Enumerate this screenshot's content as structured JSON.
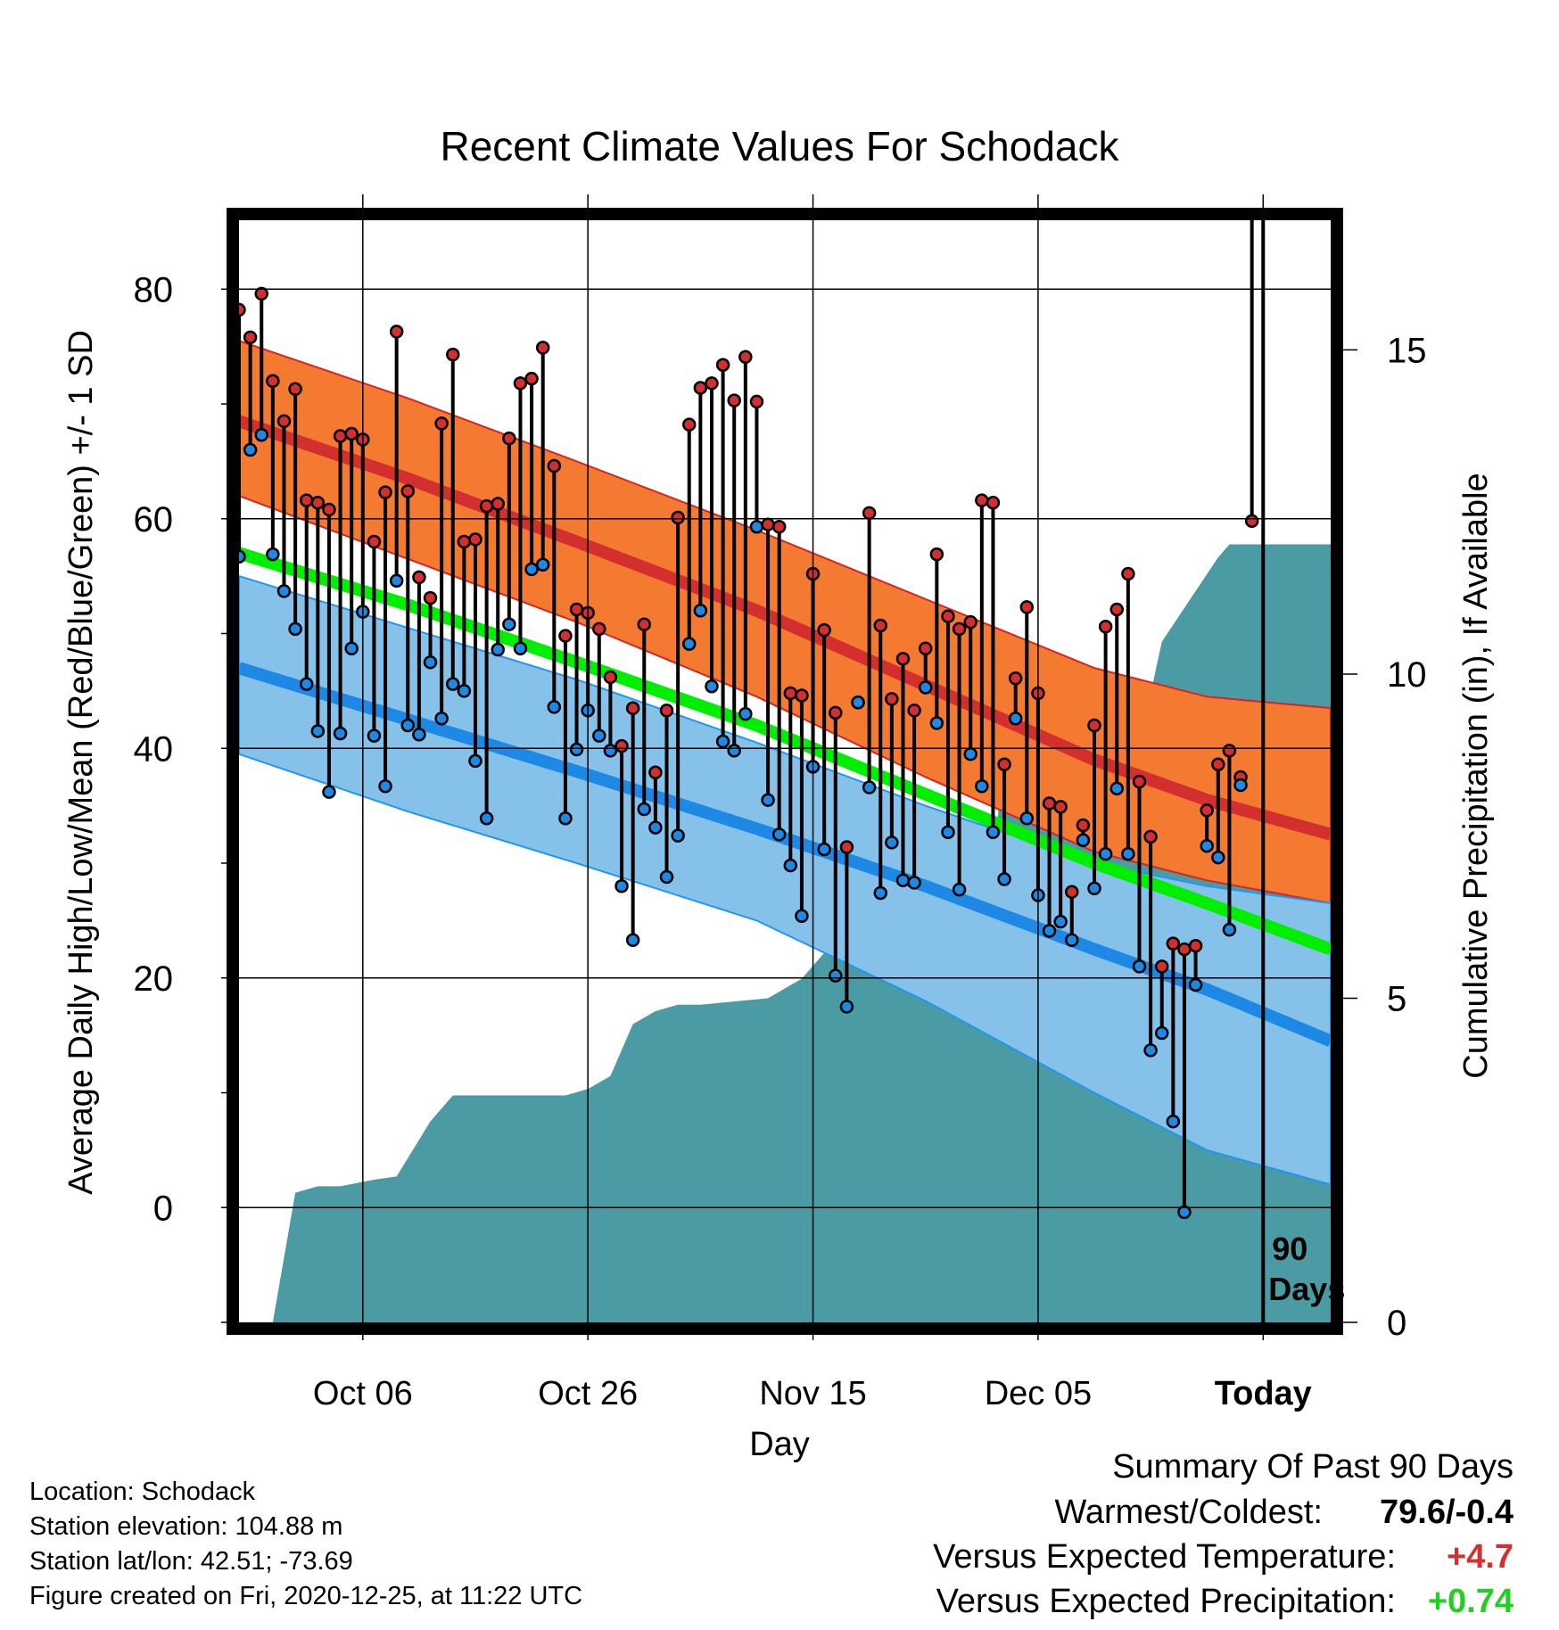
{
  "chart_data": {
    "type": "line",
    "title": "Recent Climate Values For Schodack",
    "xlabel": "Day",
    "ylabel_left": "Average Daily High/Low/Mean (Red/Blue/Green) +/- 1 SD",
    "ylabel_right": "Cumulative Precipitation (in), If Available",
    "xlim": [
      "2020-09-25",
      "2020-12-31"
    ],
    "ylim_left": [
      -10,
      86
    ],
    "ylim_right": [
      0,
      17
    ],
    "x_ticks": [
      {
        "date": "2020-10-06",
        "label": "Oct 06"
      },
      {
        "date": "2020-10-26",
        "label": "Oct 26"
      },
      {
        "date": "2020-11-15",
        "label": "Nov 15"
      },
      {
        "date": "2020-12-05",
        "label": "Dec 05"
      },
      {
        "date": "2020-12-25",
        "label": "Today"
      }
    ],
    "y_ticks_left": [
      0,
      20,
      40,
      60,
      80
    ],
    "y_ticks_right": [
      0,
      5,
      10,
      15
    ],
    "grid": true,
    "today_marker": {
      "date": "2020-12-25",
      "label_line1": "90",
      "label_line2": "Days"
    },
    "normals": {
      "dates": [
        "2020-09-25",
        "2020-10-10",
        "2020-10-25",
        "2020-11-10",
        "2020-11-25",
        "2020-12-10",
        "2020-12-20",
        "2020-12-31"
      ],
      "high_mean": [
        68.5,
        63.5,
        58.0,
        52.0,
        45.5,
        39.0,
        35.5,
        32.5
      ],
      "high_upper": [
        75.5,
        70.5,
        65.0,
        59.0,
        53.0,
        47.0,
        44.5,
        43.5
      ],
      "high_lower": [
        62.0,
        56.5,
        51.0,
        44.5,
        37.5,
        31.0,
        28.5,
        26.5
      ],
      "low_mean": [
        47.0,
        42.5,
        38.0,
        33.0,
        28.0,
        22.5,
        19.0,
        14.5
      ],
      "low_upper": [
        55.0,
        50.5,
        46.0,
        40.5,
        35.0,
        30.0,
        28.0,
        26.5
      ],
      "low_lower": [
        39.5,
        34.5,
        30.0,
        25.0,
        18.0,
        10.0,
        5.0,
        2.0
      ],
      "avg_mean": [
        57.0,
        52.5,
        47.5,
        42.0,
        36.0,
        30.0,
        26.5,
        22.5
      ]
    },
    "series": [
      {
        "name": "High",
        "color": "#d32f2f",
        "start_date": "2020-09-25",
        "values": [
          78.2,
          75.8,
          79.6,
          72.0,
          68.5,
          71.3,
          61.6,
          61.4,
          60.8,
          67.2,
          67.4,
          66.9,
          58.0,
          62.3,
          76.3,
          62.4,
          54.9,
          53.1,
          68.3,
          74.3,
          58.0,
          58.2,
          61.1,
          61.3,
          67.0,
          71.8,
          72.2,
          74.9,
          64.6,
          49.8,
          52.1,
          51.8,
          50.4,
          46.2,
          40.2,
          43.5,
          50.8,
          37.9,
          43.3,
          60.1,
          68.2,
          71.4,
          71.8,
          73.4,
          70.3,
          74.1,
          70.2,
          59.5,
          59.3,
          44.8,
          44.6,
          55.2,
          50.3,
          43.1,
          31.4,
          44.0,
          60.5,
          50.7,
          44.3,
          47.8,
          43.3,
          48.7,
          56.9,
          51.5,
          50.4,
          51.0,
          61.6,
          61.4,
          38.6,
          46.1,
          52.3,
          44.8,
          35.2,
          34.9,
          27.5,
          33.3,
          42.0,
          50.6,
          52.1,
          55.2,
          37.1,
          32.3,
          21.0,
          23.0,
          22.5,
          22.8,
          34.6,
          38.6,
          39.8,
          37.5,
          59.8
        ]
      },
      {
        "name": "Low",
        "color": "#1e88e5",
        "start_date": "2020-09-25",
        "values": [
          56.7,
          66.0,
          67.3,
          56.9,
          53.7,
          50.4,
          45.6,
          41.5,
          36.2,
          41.3,
          48.7,
          51.9,
          41.1,
          36.7,
          54.6,
          42.0,
          41.2,
          47.5,
          42.6,
          45.6,
          45.0,
          38.9,
          33.9,
          48.6,
          50.8,
          48.7,
          55.6,
          56.0,
          43.6,
          33.9,
          39.9,
          43.3,
          41.1,
          39.8,
          28.0,
          23.3,
          34.7,
          33.1,
          28.8,
          32.4,
          49.1,
          52.0,
          45.4,
          40.6,
          39.8,
          43.0,
          59.3,
          35.5,
          32.5,
          29.8,
          25.4,
          38.4,
          31.2,
          20.2,
          17.5,
          44.0,
          36.6,
          27.4,
          31.8,
          28.5,
          28.3,
          45.3,
          42.2,
          32.7,
          27.7,
          39.5,
          36.7,
          32.7,
          28.6,
          42.6,
          33.9,
          27.2,
          24.1,
          24.9,
          23.3,
          32.0,
          27.8,
          30.8,
          36.5,
          30.8,
          21.0,
          13.7,
          15.2,
          7.5,
          -0.4,
          19.4,
          31.5,
          30.5,
          24.2,
          36.8
        ]
      }
    ],
    "precipitation": {
      "dates": [
        "2020-09-25",
        "2020-09-28",
        "2020-09-30",
        "2020-10-02",
        "2020-10-04",
        "2020-10-07",
        "2020-10-09",
        "2020-10-12",
        "2020-10-14",
        "2020-10-16",
        "2020-10-20",
        "2020-10-24",
        "2020-10-26",
        "2020-10-28",
        "2020-10-30",
        "2020-11-01",
        "2020-11-03",
        "2020-11-05",
        "2020-11-11",
        "2020-11-14",
        "2020-11-16",
        "2020-11-22",
        "2020-11-24",
        "2020-11-26",
        "2020-11-29",
        "2020-12-01",
        "2020-12-02",
        "2020-12-04",
        "2020-12-05",
        "2020-12-07",
        "2020-12-10",
        "2020-12-14",
        "2020-12-15",
        "2020-12-16",
        "2020-12-21",
        "2020-12-22",
        "2020-12-31"
      ],
      "values": [
        0.0,
        0.0,
        2.0,
        2.1,
        2.1,
        2.2,
        2.25,
        3.1,
        3.5,
        3.5,
        3.5,
        3.5,
        3.6,
        3.8,
        4.6,
        4.8,
        4.9,
        4.9,
        5.0,
        5.3,
        5.7,
        5.7,
        6.3,
        6.4,
        6.9,
        6.9,
        9.0,
        9.1,
        9.2,
        9.4,
        9.5,
        9.6,
        9.7,
        10.5,
        11.8,
        12.0,
        12.0
      ]
    }
  },
  "info": {
    "location": "Location: Schodack",
    "elevation": "Station elevation: 104.88 m",
    "latlon": "Station lat/lon: 42.51; -73.69",
    "created": "Figure created on Fri, 2020-12-25, at 11:22 UTC"
  },
  "summary": {
    "heading": "Summary Of Past 90 Days",
    "warmest_label": "Warmest/Coldest:",
    "warmest_value": "79.6/-0.4",
    "temp_label": "Versus Expected Temperature:",
    "temp_value": "+4.7",
    "temp_color": "#d32f2f",
    "precip_label": "Versus Expected Precipitation:",
    "precip_value": "+0.74",
    "precip_color": "#22d022"
  },
  "colors": {
    "high_band": "#f37a30",
    "high_band_edge": "#d62424",
    "high_mean": "#d32f2f",
    "low_band": "#85c1e9",
    "low_band_edge": "#2196f3",
    "low_mean": "#1e88e5",
    "avg_mean": "#00ee00",
    "overlap": "#9b1010",
    "precip": "#4a9ba3"
  }
}
